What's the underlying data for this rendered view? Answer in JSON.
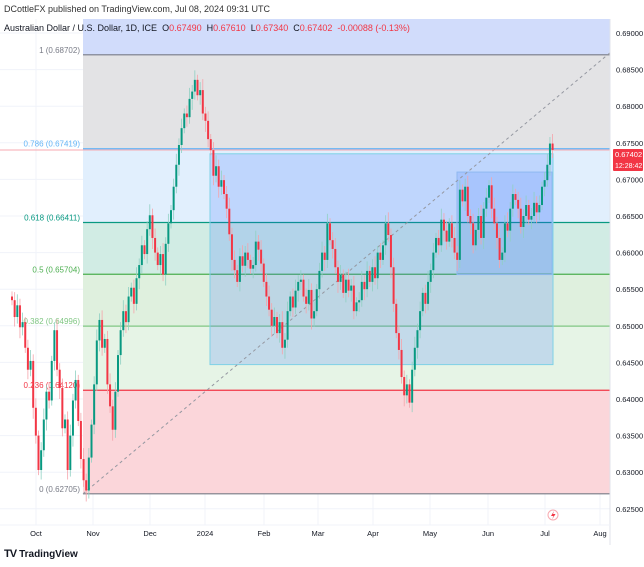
{
  "header": {
    "published": "DCottleFX published on TradingView.com, Jul 08, 2024 09:31 UTC",
    "symbol": "Australian Dollar / U.S. Dollar, 1D, ICE",
    "o_label": "O",
    "o": "0.67490",
    "h_label": "H",
    "h": "0.67610",
    "l_label": "L",
    "l": "0.67340",
    "c_label": "C",
    "c": "0.67402",
    "change": "-0.00088 (-0.13%)"
  },
  "price_tag": {
    "price": "0.67402",
    "countdown": "12:28:42"
  },
  "footer": {
    "brand": "TradingView"
  },
  "colors": {
    "up": "#089981",
    "down": "#f23645",
    "accent": "#2962ff"
  },
  "chart_data": {
    "type": "candlestick",
    "y_axis": {
      "range": [
        0.6225,
        0.6925
      ],
      "ticks": [
        "0.69000",
        "0.68500",
        "0.68000",
        "0.67500",
        "0.67000",
        "0.66500",
        "0.66000",
        "0.65500",
        "0.65000",
        "0.64500",
        "0.64000",
        "0.63500",
        "0.63000",
        "0.62500"
      ]
    },
    "x_axis": {
      "ticks": [
        "Oct",
        "Nov",
        "Dec",
        "2024",
        "Feb",
        "Mar",
        "Apr",
        "May",
        "Jun",
        "Jul",
        "Aug"
      ]
    },
    "fib_levels": [
      {
        "label": "1 (0.68702)",
        "level": 1,
        "price": 0.68702,
        "color": "#787b86"
      },
      {
        "label": "0.786 (0.67419)",
        "level": 0.786,
        "price": 0.67419,
        "color": "#64b5f6"
      },
      {
        "label": "0.618 (0.66411)",
        "level": 0.618,
        "price": 0.66411,
        "color": "#089981"
      },
      {
        "label": "0.5 (0.65704)",
        "level": 0.5,
        "price": 0.65704,
        "color": "#4caf50"
      },
      {
        "label": "0.382 (0.64996)",
        "level": 0.382,
        "price": 0.64996,
        "color": "#81c784"
      },
      {
        "label": "0.236 (0.64120)",
        "level": 0.236,
        "price": 0.6412,
        "color": "#f23645"
      },
      {
        "label": "0 (0.62705)",
        "level": 0,
        "price": 0.62705,
        "color": "#787b86"
      }
    ],
    "closes": [
      0.6535,
      0.6512,
      0.6528,
      0.6498,
      0.6505,
      0.647,
      0.644,
      0.6452,
      0.6388,
      0.635,
      0.6303,
      0.633,
      0.6372,
      0.641,
      0.6398,
      0.6452,
      0.6494,
      0.644,
      0.6415,
      0.636,
      0.6372,
      0.6303,
      0.635,
      0.6398,
      0.6426,
      0.637,
      0.6318,
      0.6289,
      0.6275,
      0.632,
      0.6365,
      0.642,
      0.648,
      0.6508,
      0.647,
      0.6482,
      0.642,
      0.639,
      0.6358,
      0.641,
      0.646,
      0.6494,
      0.652,
      0.6505,
      0.654,
      0.6552,
      0.653,
      0.6565,
      0.6583,
      0.661,
      0.6598,
      0.6632,
      0.6651,
      0.662,
      0.66,
      0.6583,
      0.6598,
      0.657,
      0.6612,
      0.664,
      0.6658,
      0.669,
      0.672,
      0.6747,
      0.677,
      0.679,
      0.6785,
      0.681,
      0.682,
      0.6836,
      0.6815,
      0.6822,
      0.679,
      0.678,
      0.6755,
      0.674,
      0.6705,
      0.6718,
      0.669,
      0.6699,
      0.668,
      0.666,
      0.6625,
      0.659,
      0.6576,
      0.656,
      0.6595,
      0.6582,
      0.66,
      0.659,
      0.6578,
      0.6583,
      0.6615,
      0.6604,
      0.6585,
      0.656,
      0.654,
      0.6522,
      0.65,
      0.6512,
      0.649,
      0.6505,
      0.647,
      0.6481,
      0.652,
      0.654,
      0.6525,
      0.6548,
      0.656,
      0.6563,
      0.654,
      0.653,
      0.6549,
      0.651,
      0.652,
      0.655,
      0.6575,
      0.66,
      0.659,
      0.664,
      0.6617,
      0.6605,
      0.658,
      0.656,
      0.657,
      0.6545,
      0.6563,
      0.6548,
      0.6555,
      0.652,
      0.6532,
      0.6535,
      0.656,
      0.655,
      0.6575,
      0.656,
      0.658,
      0.6565,
      0.66,
      0.659,
      0.661,
      0.664,
      0.6624,
      0.658,
      0.653,
      0.649,
      0.6467,
      0.643,
      0.6405,
      0.642,
      0.6395,
      0.644,
      0.647,
      0.6494,
      0.652,
      0.6545,
      0.653,
      0.656,
      0.6576,
      0.66,
      0.662,
      0.661,
      0.6645,
      0.663,
      0.6615,
      0.664,
      0.662,
      0.66,
      0.659,
      0.6686,
      0.667,
      0.669,
      0.665,
      0.664,
      0.661,
      0.6631,
      0.665,
      0.662,
      0.666,
      0.6675,
      0.6692,
      0.666,
      0.664,
      0.662,
      0.659,
      0.66,
      0.664,
      0.663,
      0.666,
      0.668,
      0.6672,
      0.666,
      0.6635,
      0.665,
      0.6665,
      0.6645,
      0.665,
      0.6668,
      0.6655,
      0.6665,
      0.669,
      0.6699,
      0.672,
      0.6749,
      0.67402
    ],
    "last_price": 0.67402,
    "rectangles": [
      {
        "price_top": 0.6735,
        "price_bottom": 0.6447
      },
      {
        "price_top": 0.671,
        "price_bottom": 0.657
      }
    ]
  }
}
